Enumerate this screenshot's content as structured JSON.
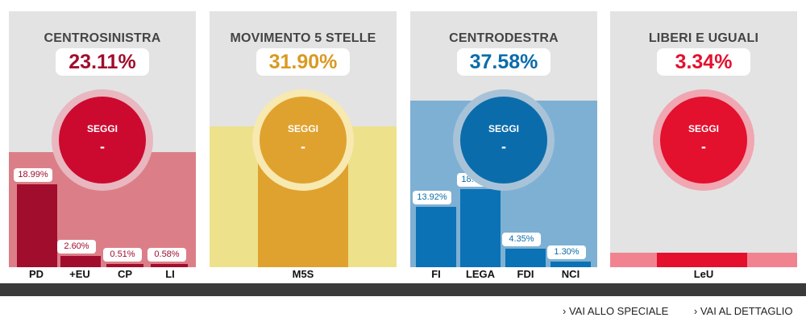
{
  "cards": [
    {
      "title": "CENTROSINISTRA",
      "percent": "23.11%",
      "percent_color": "#a10d2c",
      "seggi_label": "SEGGI",
      "seggi_value": "-",
      "circle_color": "#cc0a2f",
      "ring_color": "#e8b7bf",
      "band_color": "#dc7e88",
      "band_height_fraction": 0.45,
      "bar_color": "#a10d2c",
      "label_color": "#a10d2c",
      "bars": [
        {
          "name": "PD",
          "value": "18.99%",
          "v": 18.99
        },
        {
          "name": "+EU",
          "value": "2.60%",
          "v": 2.6
        },
        {
          "name": "CP",
          "value": "0.51%",
          "v": 0.51
        },
        {
          "name": "LI",
          "value": "0.58%",
          "v": 0.58
        }
      ]
    },
    {
      "title": "MOVIMENTO 5 STELLE",
      "percent": "31.90%",
      "percent_color": "#d99a22",
      "seggi_label": "SEGGI",
      "seggi_value": "-",
      "circle_color": "#e0a22e",
      "ring_color": "#f7e9b0",
      "band_color": "#ede18c",
      "band_height_fraction": 0.55,
      "bar_color": "#e0a22e",
      "label_color": "#d99a22",
      "bars": [
        {
          "name": "M5S",
          "value": "",
          "v": 31.9
        }
      ]
    },
    {
      "title": "CENTRODESTRA",
      "percent": "37.58%",
      "percent_color": "#0b6cab",
      "seggi_label": "SEGGI",
      "seggi_value": "-",
      "circle_color": "#0b6cab",
      "ring_color": "#a8c3d8",
      "band_color": "#7eb0d3",
      "band_height_fraction": 0.65,
      "bar_color": "#0b72b5",
      "label_color": "#0b6cab",
      "bars": [
        {
          "name": "FI",
          "value": "13.92%",
          "v": 13.92
        },
        {
          "name": "LEGA",
          "value": "18.01%",
          "v": 18.01
        },
        {
          "name": "FDI",
          "value": "4.35%",
          "v": 4.35
        },
        {
          "name": "NCI",
          "value": "1.30%",
          "v": 1.3
        }
      ]
    },
    {
      "title": "LIBERI E UGUALI",
      "percent": "3.34%",
      "percent_color": "#e3102e",
      "seggi_label": "SEGGI",
      "seggi_value": "-",
      "circle_color": "#e3102e",
      "ring_color": "#f0a7b1",
      "band_color": "#f18390",
      "band_height_fraction": 0.06,
      "bar_color": "#e3102e",
      "label_color": "#e3102e",
      "bars": [
        {
          "name": "LeU",
          "value": "",
          "v": 3.34
        }
      ]
    }
  ],
  "links": [
    "› VAI ALLO SPECIALE",
    "› VAI AL DETTAGLIO"
  ]
}
